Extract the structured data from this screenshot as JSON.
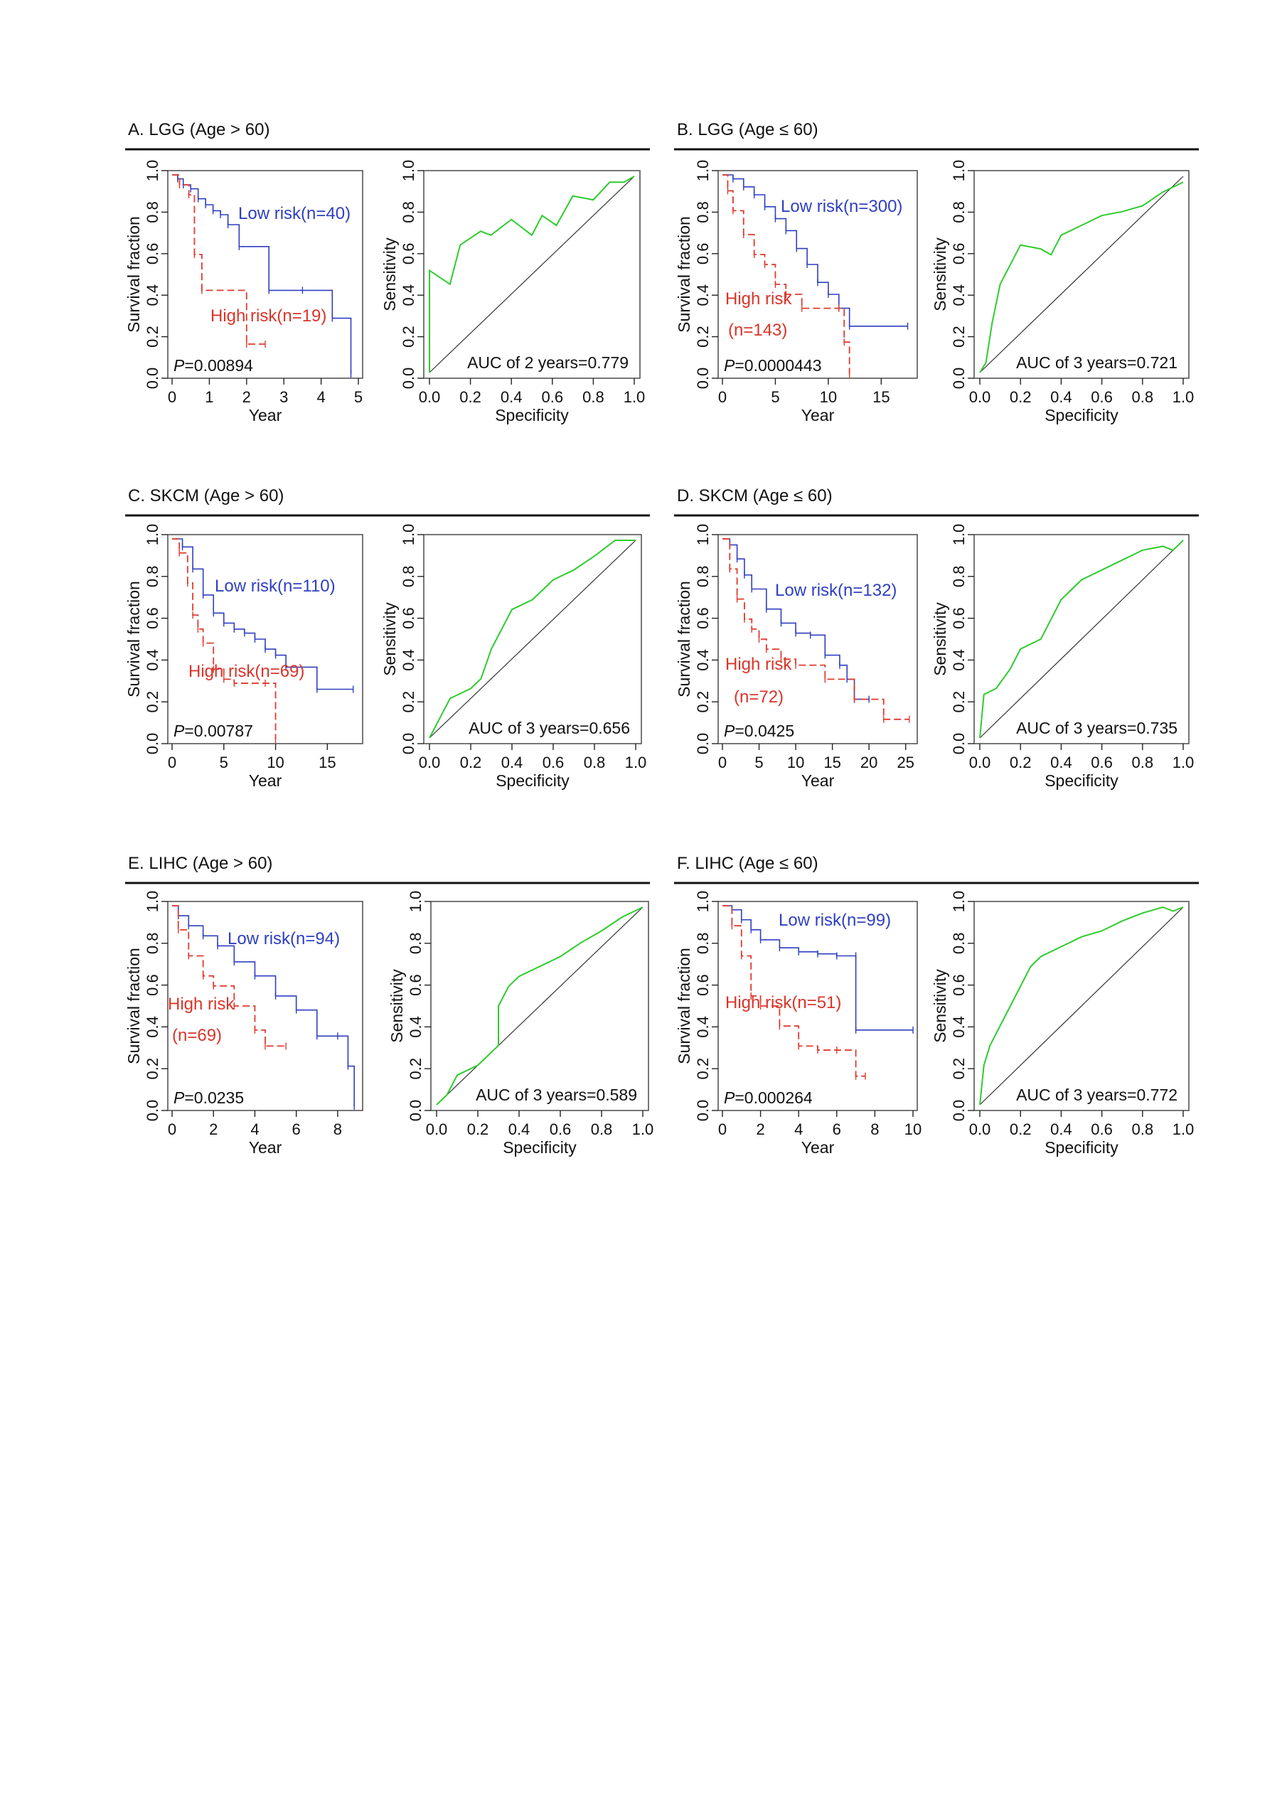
{
  "figure": {
    "panels": [
      {
        "title": "A. LGG (Age > 60)",
        "survival": {
          "ylabel": "Survival fraction",
          "xlabel": "Year",
          "xticks": [
            "0",
            "1",
            "2",
            "3",
            "4",
            "5"
          ],
          "yticks": [
            "0.0",
            "0.2",
            "0.4",
            "0.6",
            "0.8",
            "1.0"
          ],
          "p_prefix": "P",
          "p_value": "=0.00894",
          "low_label": "Low risk(n=40)",
          "high_label": "High risk(n=19)",
          "high_label_2": ""
        },
        "roc": {
          "ylabel": "Sensitivity",
          "xlabel": "Specificity",
          "xticks": [
            "0.0",
            "0.2",
            "0.4",
            "0.6",
            "0.8",
            "1.0"
          ],
          "yticks": [
            "0.0",
            "0.2",
            "0.4",
            "0.6",
            "0.8",
            "1.0"
          ],
          "auc_label": "AUC of 2 years=0.779"
        }
      },
      {
        "title": "B. LGG (Age ≤ 60)",
        "survival": {
          "ylabel": "Survival fraction",
          "xlabel": "Year",
          "xticks": [
            "0",
            "5",
            "10",
            "15"
          ],
          "yticks": [
            "0.0",
            "0.2",
            "0.4",
            "0.6",
            "0.8",
            "1.0"
          ],
          "p_prefix": "P",
          "p_value": "=0.0000443",
          "low_label": "Low risk(n=300)",
          "high_label": "High risk",
          "high_label_2": "(n=143)"
        },
        "roc": {
          "ylabel": "Sensitivity",
          "xlabel": "Specificity",
          "xticks": [
            "0.0",
            "0.2",
            "0.4",
            "0.6",
            "0.8",
            "1.0"
          ],
          "yticks": [
            "0.0",
            "0.2",
            "0.4",
            "0.6",
            "0.8",
            "1.0"
          ],
          "auc_label": "AUC of 3 years=0.721"
        }
      },
      {
        "title": "C. SKCM (Age > 60)",
        "survival": {
          "ylabel": "Survival fraction",
          "xlabel": "Year",
          "xticks": [
            "0",
            "5",
            "10",
            "15"
          ],
          "yticks": [
            "0.0",
            "0.2",
            "0.4",
            "0.6",
            "0.8",
            "1.0"
          ],
          "p_prefix": "P",
          "p_value": "=0.00787",
          "low_label": "Low risk(n=110)",
          "high_label": "High risk(n=69)",
          "high_label_2": ""
        },
        "roc": {
          "ylabel": "Sensitivity",
          "xlabel": "Specificity",
          "xticks": [
            "0.0",
            "0.2",
            "0.4",
            "0.6",
            "0.8",
            "1.0"
          ],
          "yticks": [
            "0.0",
            "0.2",
            "0.4",
            "0.6",
            "0.8",
            "1.0"
          ],
          "auc_label": "AUC of 3 years=0.656"
        }
      },
      {
        "title": "D. SKCM (Age ≤ 60)",
        "survival": {
          "ylabel": "Survival fraction",
          "xlabel": "Year",
          "xticks": [
            "0",
            "5",
            "10",
            "15",
            "20",
            "25"
          ],
          "yticks": [
            "0.0",
            "0.2",
            "0.4",
            "0.6",
            "0.8",
            "1.0"
          ],
          "p_prefix": "P",
          "p_value": "=0.0425",
          "low_label": "Low risk(n=132)",
          "high_label": "High risk",
          "high_label_2": "(n=72)"
        },
        "roc": {
          "ylabel": "Sensitivity",
          "xlabel": "Specificity",
          "xticks": [
            "0.0",
            "0.2",
            "0.4",
            "0.6",
            "0.8",
            "1.0"
          ],
          "yticks": [
            "0.0",
            "0.2",
            "0.4",
            "0.6",
            "0.8",
            "1.0"
          ],
          "auc_label": "AUC of 3 years=0.735"
        }
      },
      {
        "title": "E. LIHC (Age > 60)",
        "survival": {
          "ylabel": "Survival fraction",
          "xlabel": "Year",
          "xticks": [
            "0",
            "2",
            "4",
            "6",
            "8"
          ],
          "yticks": [
            "0.0",
            "0.2",
            "0.4",
            "0.6",
            "0.8",
            "1.0"
          ],
          "p_prefix": "P",
          "p_value": "=0.0235",
          "low_label": "Low risk(n=94)",
          "high_label": "High risk",
          "high_label_2": "(n=69)"
        },
        "roc": {
          "ylabel": "Sensitivity",
          "xlabel": "Specificity",
          "xticks": [
            "0.0",
            "0.2",
            "0.4",
            "0.6",
            "0.8",
            "1.0"
          ],
          "yticks": [
            "0.0",
            "0.2",
            "0.4",
            "0.6",
            "0.8",
            "1.0"
          ],
          "auc_label": "AUC of 3 years=0.589"
        }
      },
      {
        "title": "F. LIHC (Age ≤ 60)",
        "survival": {
          "ylabel": "Survival fraction",
          "xlabel": "Year",
          "xticks": [
            "0",
            "2",
            "4",
            "6",
            "8",
            "10"
          ],
          "yticks": [
            "0.0",
            "0.2",
            "0.4",
            "0.6",
            "0.8",
            "1.0"
          ],
          "p_prefix": "P",
          "p_value": "=0.000264",
          "low_label": "Low risk(n=99)",
          "high_label": "High risk(n=51)",
          "high_label_2": ""
        },
        "roc": {
          "ylabel": "Sensitivity",
          "xlabel": "Specificity",
          "xticks": [
            "0.0",
            "0.2",
            "0.4",
            "0.6",
            "0.8",
            "1.0"
          ],
          "yticks": [
            "0.0",
            "0.2",
            "0.4",
            "0.6",
            "0.8",
            "1.0"
          ],
          "auc_label": "AUC of 3 years=0.772"
        }
      }
    ]
  },
  "colors": {
    "low_risk": "#2f3fc0",
    "high_risk": "#e03a2e",
    "roc": "#2ecc2e",
    "diagonal": "#333333",
    "text": "#111111"
  },
  "chart_data": [
    {
      "type": "line",
      "panel": "A",
      "kind": "kaplan-meier",
      "xlim": [
        0,
        5
      ],
      "ylim": [
        0,
        1
      ],
      "series": [
        {
          "name": "Low risk(n=40)",
          "x": [
            0,
            0.15,
            0.3,
            0.5,
            0.7,
            0.9,
            1.1,
            1.3,
            1.5,
            1.8,
            2.6,
            3.5,
            4.3,
            4.8
          ],
          "y": [
            1.0,
            0.98,
            0.95,
            0.93,
            0.88,
            0.85,
            0.82,
            0.8,
            0.75,
            0.64,
            0.42,
            0.42,
            0.28,
            0.0
          ]
        },
        {
          "name": "High risk(n=19)",
          "x": [
            0,
            0.2,
            0.45,
            0.6,
            0.8,
            2.0,
            2.5
          ],
          "y": [
            1.0,
            0.95,
            0.9,
            0.6,
            0.42,
            0.15,
            0.15
          ]
        }
      ]
    },
    {
      "type": "line",
      "panel": "A",
      "kind": "roc",
      "xlim": [
        0,
        1
      ],
      "ylim": [
        0,
        1
      ],
      "auc": 0.779,
      "series": [
        {
          "name": "",
          "x": [
            0.0,
            0.0,
            0.1,
            0.15,
            0.25,
            0.3,
            0.4,
            0.5,
            0.55,
            0.62,
            0.7,
            0.8,
            0.88,
            0.95,
            1.0
          ],
          "y": [
            0.0,
            0.52,
            0.45,
            0.65,
            0.72,
            0.7,
            0.78,
            0.7,
            0.8,
            0.75,
            0.9,
            0.88,
            0.97,
            0.97,
            1.0
          ]
        }
      ]
    },
    {
      "type": "line",
      "panel": "B",
      "kind": "kaplan-meier",
      "xlim": [
        0,
        18
      ],
      "ylim": [
        0,
        1
      ],
      "series": [
        {
          "name": "Low risk(n=300)",
          "x": [
            0,
            1,
            2,
            3,
            4,
            5,
            6,
            7,
            8,
            9,
            10,
            11,
            12,
            17.5
          ],
          "y": [
            1.0,
            0.98,
            0.94,
            0.9,
            0.84,
            0.78,
            0.72,
            0.63,
            0.55,
            0.46,
            0.4,
            0.33,
            0.24,
            0.24
          ]
        },
        {
          "name": "High risk (n=143)",
          "x": [
            0,
            0.5,
            1,
            2,
            3,
            4,
            5,
            6,
            7.5,
            11,
            11.5,
            12
          ],
          "y": [
            1.0,
            0.92,
            0.82,
            0.7,
            0.6,
            0.55,
            0.45,
            0.4,
            0.33,
            0.33,
            0.16,
            0.0
          ]
        }
      ]
    },
    {
      "type": "line",
      "panel": "B",
      "kind": "roc",
      "xlim": [
        0,
        1
      ],
      "ylim": [
        0,
        1
      ],
      "auc": 0.721,
      "series": [
        {
          "name": "",
          "x": [
            0.0,
            0.03,
            0.06,
            0.1,
            0.15,
            0.2,
            0.3,
            0.35,
            0.4,
            0.5,
            0.6,
            0.7,
            0.8,
            0.9,
            1.0
          ],
          "y": [
            0.0,
            0.05,
            0.25,
            0.45,
            0.55,
            0.65,
            0.63,
            0.6,
            0.7,
            0.75,
            0.8,
            0.82,
            0.85,
            0.92,
            0.97
          ]
        }
      ]
    },
    {
      "type": "line",
      "panel": "C",
      "kind": "kaplan-meier",
      "xlim": [
        0,
        18
      ],
      "ylim": [
        0,
        1
      ],
      "series": [
        {
          "name": "Low risk(n=110)",
          "x": [
            0,
            1,
            2,
            3,
            4,
            5,
            6,
            7,
            8,
            9,
            10,
            11,
            14,
            17.5
          ],
          "y": [
            1.0,
            0.96,
            0.85,
            0.72,
            0.63,
            0.58,
            0.55,
            0.53,
            0.5,
            0.45,
            0.42,
            0.36,
            0.25,
            0.25
          ]
        },
        {
          "name": "High risk(n=69)",
          "x": [
            0,
            0.7,
            1.5,
            2,
            2.5,
            3,
            4,
            5,
            6,
            9,
            10
          ],
          "y": [
            1.0,
            0.93,
            0.78,
            0.62,
            0.55,
            0.48,
            0.35,
            0.3,
            0.28,
            0.28,
            0.0
          ]
        }
      ]
    },
    {
      "type": "line",
      "panel": "C",
      "kind": "roc",
      "xlim": [
        0,
        1
      ],
      "ylim": [
        0,
        1
      ],
      "auc": 0.656,
      "series": [
        {
          "name": "",
          "x": [
            0.0,
            0.05,
            0.1,
            0.2,
            0.25,
            0.3,
            0.35,
            0.4,
            0.5,
            0.55,
            0.6,
            0.7,
            0.8,
            0.9,
            1.0
          ],
          "y": [
            0.0,
            0.1,
            0.2,
            0.25,
            0.3,
            0.45,
            0.55,
            0.65,
            0.7,
            0.75,
            0.8,
            0.85,
            0.92,
            1.0,
            1.0
          ]
        }
      ]
    },
    {
      "type": "line",
      "panel": "D",
      "kind": "kaplan-meier",
      "xlim": [
        0,
        26
      ],
      "ylim": [
        0,
        1
      ],
      "series": [
        {
          "name": "Low risk(n=132)",
          "x": [
            0,
            1,
            2,
            3,
            4,
            6,
            8,
            10,
            12,
            14,
            16,
            17,
            18,
            20
          ],
          "y": [
            1.0,
            0.97,
            0.9,
            0.82,
            0.75,
            0.65,
            0.58,
            0.53,
            0.52,
            0.42,
            0.37,
            0.3,
            0.2,
            0.2
          ]
        },
        {
          "name": "High risk (n=72)",
          "x": [
            0,
            1,
            2,
            3,
            4,
            5,
            6,
            8,
            10,
            14,
            18,
            22,
            25.5
          ],
          "y": [
            1.0,
            0.85,
            0.7,
            0.6,
            0.55,
            0.5,
            0.45,
            0.4,
            0.37,
            0.3,
            0.2,
            0.1,
            0.1
          ]
        }
      ]
    },
    {
      "type": "line",
      "panel": "D",
      "kind": "roc",
      "xlim": [
        0,
        1
      ],
      "ylim": [
        0,
        1
      ],
      "auc": 0.735,
      "series": [
        {
          "name": "",
          "x": [
            0.0,
            0.02,
            0.08,
            0.15,
            0.2,
            0.3,
            0.35,
            0.4,
            0.45,
            0.5,
            0.6,
            0.7,
            0.8,
            0.9,
            0.95,
            1.0
          ],
          "y": [
            0.0,
            0.22,
            0.25,
            0.35,
            0.45,
            0.5,
            0.6,
            0.7,
            0.75,
            0.8,
            0.85,
            0.9,
            0.95,
            0.97,
            0.95,
            1.0
          ]
        }
      ]
    },
    {
      "type": "line",
      "panel": "E",
      "kind": "kaplan-meier",
      "xlim": [
        0,
        9
      ],
      "ylim": [
        0,
        1
      ],
      "series": [
        {
          "name": "Low risk(n=94)",
          "x": [
            0,
            0.3,
            0.8,
            1.5,
            2.2,
            3,
            4,
            5,
            6,
            7,
            8,
            8.5,
            8.8
          ],
          "y": [
            1.0,
            0.95,
            0.9,
            0.85,
            0.8,
            0.72,
            0.65,
            0.55,
            0.48,
            0.35,
            0.35,
            0.2,
            0.0
          ]
        },
        {
          "name": "High risk (n=69)",
          "x": [
            0,
            0.3,
            0.8,
            1.5,
            2,
            3,
            4,
            4.5,
            5.5
          ],
          "y": [
            1.0,
            0.88,
            0.75,
            0.65,
            0.6,
            0.5,
            0.38,
            0.3,
            0.3
          ]
        }
      ]
    },
    {
      "type": "line",
      "panel": "E",
      "kind": "roc",
      "xlim": [
        0,
        1
      ],
      "ylim": [
        0,
        1
      ],
      "auc": 0.589,
      "series": [
        {
          "name": "",
          "x": [
            0.0,
            0.05,
            0.1,
            0.2,
            0.3,
            0.3,
            0.35,
            0.4,
            0.5,
            0.6,
            0.7,
            0.8,
            0.9,
            1.0
          ],
          "y": [
            0.0,
            0.05,
            0.15,
            0.2,
            0.3,
            0.5,
            0.6,
            0.65,
            0.7,
            0.75,
            0.82,
            0.88,
            0.95,
            1.0
          ]
        }
      ]
    },
    {
      "type": "line",
      "panel": "F",
      "kind": "kaplan-meier",
      "xlim": [
        0,
        10
      ],
      "ylim": [
        0,
        1
      ],
      "series": [
        {
          "name": "Low risk(n=99)",
          "x": [
            0,
            0.5,
            1,
            1.5,
            2,
            3,
            4,
            5,
            6,
            7,
            7,
            10
          ],
          "y": [
            1.0,
            0.98,
            0.93,
            0.88,
            0.83,
            0.79,
            0.77,
            0.76,
            0.75,
            0.75,
            0.38,
            0.38
          ]
        },
        {
          "name": "High risk(n=51)",
          "x": [
            0,
            0.5,
            1,
            1.5,
            2,
            3,
            4,
            5,
            6,
            7,
            7.5
          ],
          "y": [
            1.0,
            0.9,
            0.75,
            0.55,
            0.5,
            0.4,
            0.3,
            0.28,
            0.28,
            0.15,
            0.15
          ]
        }
      ]
    },
    {
      "type": "line",
      "panel": "F",
      "kind": "roc",
      "xlim": [
        0,
        1
      ],
      "ylim": [
        0,
        1
      ],
      "auc": 0.772,
      "series": [
        {
          "name": "",
          "x": [
            0.0,
            0.02,
            0.05,
            0.1,
            0.15,
            0.2,
            0.25,
            0.3,
            0.4,
            0.5,
            0.6,
            0.7,
            0.8,
            0.9,
            0.95,
            1.0
          ],
          "y": [
            0.0,
            0.2,
            0.3,
            0.4,
            0.5,
            0.6,
            0.7,
            0.75,
            0.8,
            0.85,
            0.88,
            0.93,
            0.97,
            1.0,
            0.98,
            1.0
          ]
        }
      ]
    }
  ]
}
